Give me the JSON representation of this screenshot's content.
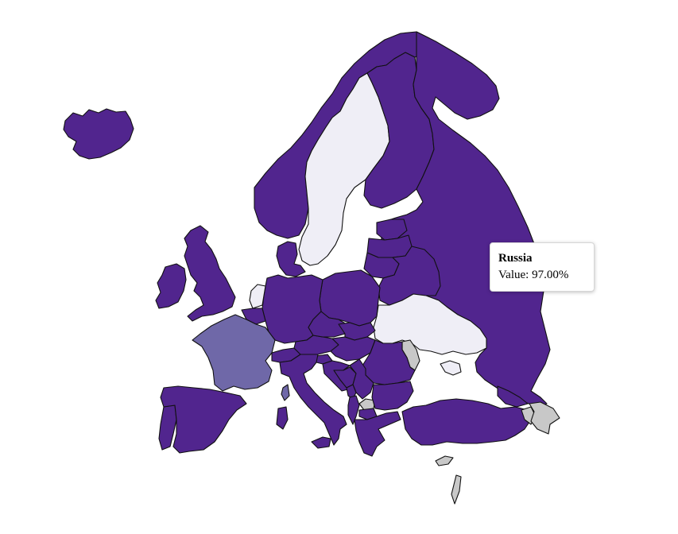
{
  "colors": {
    "high": "#51258e",
    "mid": "#6f68a8",
    "low": "#efeef6",
    "no_data": "#c8c8c8",
    "border": "#111111",
    "background": "#ffffff"
  },
  "tooltip": {
    "country": "Russia",
    "value_text": "Value: 97.00%"
  },
  "map_data": {
    "type": "choropleth",
    "region": "Europe",
    "countries": [
      {
        "name": "Iceland",
        "class": "high"
      },
      {
        "name": "Ireland",
        "class": "high"
      },
      {
        "name": "United Kingdom",
        "class": "high"
      },
      {
        "name": "Norway",
        "class": "high"
      },
      {
        "name": "Sweden",
        "class": "low"
      },
      {
        "name": "Finland",
        "class": "high"
      },
      {
        "name": "Russia",
        "class": "high",
        "value": 97.0
      },
      {
        "name": "Estonia",
        "class": "high"
      },
      {
        "name": "Latvia",
        "class": "high"
      },
      {
        "name": "Lithuania",
        "class": "high"
      },
      {
        "name": "Belarus",
        "class": "high"
      },
      {
        "name": "Ukraine",
        "class": "low"
      },
      {
        "name": "Moldova",
        "class": "no_data"
      },
      {
        "name": "Poland",
        "class": "high"
      },
      {
        "name": "Germany",
        "class": "high"
      },
      {
        "name": "Denmark",
        "class": "high"
      },
      {
        "name": "Netherlands",
        "class": "low"
      },
      {
        "name": "Belgium",
        "class": "high"
      },
      {
        "name": "France",
        "class": "mid"
      },
      {
        "name": "Spain",
        "class": "high"
      },
      {
        "name": "Portugal",
        "class": "high"
      },
      {
        "name": "Italy",
        "class": "high"
      },
      {
        "name": "Switzerland",
        "class": "high"
      },
      {
        "name": "Austria",
        "class": "high"
      },
      {
        "name": "Czechia",
        "class": "high"
      },
      {
        "name": "Slovakia",
        "class": "high"
      },
      {
        "name": "Hungary",
        "class": "high"
      },
      {
        "name": "Romania",
        "class": "high"
      },
      {
        "name": "Bulgaria",
        "class": "high"
      },
      {
        "name": "Serbia",
        "class": "high"
      },
      {
        "name": "Croatia",
        "class": "high"
      },
      {
        "name": "Bosnia and Herzegovina",
        "class": "high"
      },
      {
        "name": "Slovenia",
        "class": "high"
      },
      {
        "name": "Montenegro",
        "class": "high"
      },
      {
        "name": "Albania",
        "class": "high"
      },
      {
        "name": "North Macedonia",
        "class": "high"
      },
      {
        "name": "Kosovo",
        "class": "no_data"
      },
      {
        "name": "Greece",
        "class": "high"
      },
      {
        "name": "Turkey",
        "class": "high"
      },
      {
        "name": "Georgia",
        "class": "high"
      },
      {
        "name": "Armenia",
        "class": "no_data"
      },
      {
        "name": "Azerbaijan",
        "class": "no_data"
      },
      {
        "name": "Cyprus",
        "class": "no_data"
      },
      {
        "name": "Crimea",
        "class": "low"
      },
      {
        "name": "Sardinia",
        "class": "high"
      },
      {
        "name": "Corsica",
        "class": "mid"
      },
      {
        "name": "Sicily",
        "class": "high"
      }
    ]
  }
}
